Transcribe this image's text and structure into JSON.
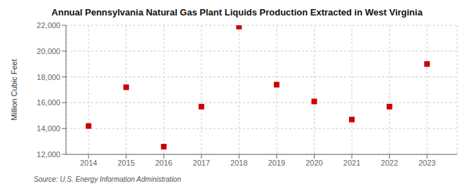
{
  "chart_data": {
    "type": "scatter",
    "title": "Annual Pennsylvania Natural Gas Plant Liquids Production Extracted in West Virginia",
    "y_label": "Million Cubic Feet",
    "annotations": [
      "Source: U.S. Energy Information Administration"
    ],
    "x": [
      2014,
      2015,
      2016,
      2017,
      2018,
      2019,
      2020,
      2021,
      2022,
      2023
    ],
    "values": [
      14200,
      17200,
      12600,
      15700,
      21900,
      17400,
      16100,
      14700,
      15700,
      19000
    ],
    "xlim": [
      2013.4,
      2023.8
    ],
    "xticks": [
      2014,
      2015,
      2016,
      2017,
      2018,
      2019,
      2020,
      2021,
      2022,
      2023
    ],
    "ylim": [
      12000,
      22000
    ],
    "yticks": [
      {
        "value": 12000,
        "label": "12,000"
      },
      {
        "value": 14000,
        "label": "14,000"
      },
      {
        "value": 16000,
        "label": "16,000"
      },
      {
        "value": 18000,
        "label": "18,000"
      },
      {
        "value": 20000,
        "label": "20,000"
      },
      {
        "value": 22000,
        "label": "22,000"
      }
    ],
    "color": "#cc0000",
    "marker": "square",
    "grid": true
  }
}
